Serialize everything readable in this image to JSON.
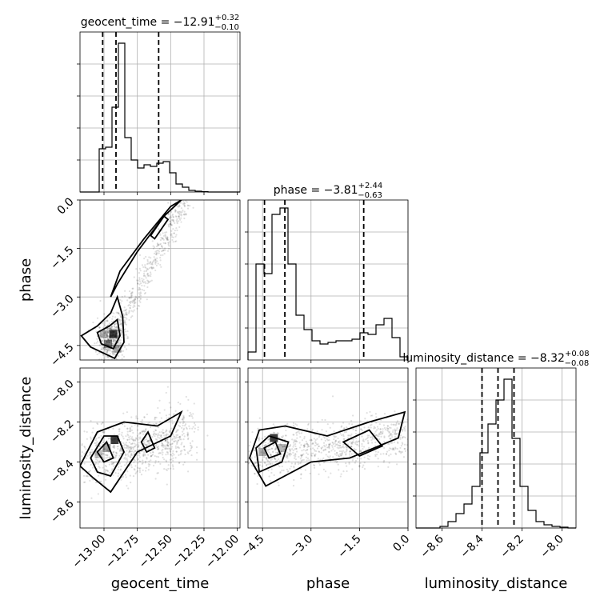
{
  "chart_data": {
    "type": "corner",
    "parameters": [
      "geocent_time",
      "phase",
      "luminosity_distance"
    ],
    "titles": [
      {
        "parameter": "geocent_time",
        "text": "geocent_time = −12.91",
        "plus": "+0.32",
        "minus": "−0.10"
      },
      {
        "parameter": "phase",
        "text": "phase = −3.81",
        "plus": "+2.44",
        "minus": "−0.63"
      },
      {
        "parameter": "luminosity_distance",
        "text": "luminosity_distance = −8.32",
        "plus": "+0.08",
        "minus": "−0.08"
      }
    ],
    "ranges": {
      "geocent_time": [
        -13.18,
        -11.98
      ],
      "phase": [
        -4.95,
        0.0
      ],
      "luminosity_distance": [
        -8.73,
        -7.93
      ]
    },
    "ticks": {
      "geocent_time": [
        -13.0,
        -12.75,
        -12.5,
        -12.25,
        -12.0
      ],
      "phase": [
        -4.5,
        -3.0,
        -1.5,
        0.0
      ],
      "luminosity_distance": [
        -8.6,
        -8.4,
        -8.2,
        -8.0
      ]
    },
    "tick_labels": {
      "geocent_time": [
        "−13.00",
        "−12.75",
        "−12.50",
        "−12.25",
        "−12.00"
      ],
      "phase": [
        "−4.5",
        "−3.0",
        "−1.5",
        "0.0"
      ],
      "luminosity_distance": [
        "−8.6",
        "−8.4",
        "−8.2",
        "−8.0"
      ]
    },
    "quantiles": {
      "geocent_time": [
        -13.01,
        -12.91,
        -12.59
      ],
      "phase": [
        -4.44,
        -3.81,
        -1.37
      ],
      "luminosity_distance": [
        -8.4,
        -8.32,
        -8.24
      ]
    },
    "histograms": {
      "geocent_time": {
        "range": [
          -13.18,
          -11.98
        ],
        "counts": [
          0,
          0,
          0,
          0.27,
          0.28,
          0.53,
          0.93,
          0.34,
          0.2,
          0.15,
          0.17,
          0.16,
          0.18,
          0.19,
          0.12,
          0.05,
          0.03,
          0.01,
          0.005,
          0.002,
          0,
          0,
          0,
          0,
          0
        ]
      },
      "phase": {
        "range": [
          -4.95,
          0.0
        ],
        "counts": [
          0.05,
          0.6,
          0.54,
          0.91,
          0.95,
          0.6,
          0.28,
          0.19,
          0.12,
          0.1,
          0.11,
          0.12,
          0.12,
          0.13,
          0.17,
          0.16,
          0.22,
          0.26,
          0.14,
          0.02
        ]
      },
      "luminosity_distance": {
        "range": [
          -8.73,
          -7.93
        ],
        "counts": [
          0,
          0,
          0,
          0.01,
          0.04,
          0.09,
          0.15,
          0.26,
          0.47,
          0.65,
          0.8,
          0.93,
          0.56,
          0.26,
          0.11,
          0.04,
          0.02,
          0.01,
          0.005,
          0
        ]
      }
    },
    "grid": true,
    "hist_type": "step",
    "scatter_density": "2d contours with sample points",
    "xlabels": [
      "geocent_time",
      "phase",
      "luminosity_distance"
    ],
    "ylabels": [
      "phase",
      "luminosity_distance"
    ]
  }
}
